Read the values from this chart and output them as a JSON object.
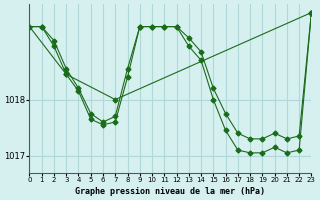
{
  "title": "Graphe pression niveau de la mer (hPa)",
  "background_color": "#d6f0f0",
  "grid_color": "#b0d8d8",
  "line_color": "#1a6b1a",
  "xlim": [
    0,
    23
  ],
  "ylim": [
    1016.7,
    1019.7
  ],
  "yticks": [
    1017,
    1018
  ],
  "xticks": [
    0,
    1,
    2,
    3,
    4,
    5,
    6,
    7,
    8,
    9,
    10,
    11,
    12,
    13,
    14,
    15,
    16,
    17,
    18,
    19,
    20,
    21,
    22,
    23
  ],
  "series1": {
    "x": [
      0,
      1,
      2,
      3,
      4,
      5,
      6,
      7,
      8,
      9,
      10,
      11,
      12,
      13,
      14,
      15,
      16,
      17,
      18,
      19,
      20,
      21,
      22,
      23
    ],
    "y": [
      1019.3,
      1019.3,
      1019.05,
      1018.55,
      1018.2,
      1017.75,
      1017.6,
      1017.7,
      1018.55,
      1019.3,
      1019.3,
      1019.3,
      1019.3,
      1019.1,
      1018.85,
      1018.2,
      1017.75,
      1017.4,
      1017.3,
      1017.3,
      1017.4,
      1017.3,
      1017.35,
      1019.55
    ]
  },
  "series2": {
    "x": [
      0,
      1,
      2,
      3,
      4,
      5,
      6,
      7,
      8,
      9,
      10,
      11,
      12,
      13,
      14,
      15,
      16,
      17,
      18,
      19,
      20,
      21,
      22,
      23
    ],
    "y": [
      1019.3,
      1019.3,
      1018.95,
      1018.45,
      1018.15,
      1017.65,
      1017.55,
      1017.6,
      1018.4,
      1019.3,
      1019.3,
      1019.3,
      1019.3,
      1018.95,
      1018.7,
      1018.0,
      1017.45,
      1017.1,
      1017.05,
      1017.05,
      1017.15,
      1017.05,
      1017.1,
      1019.55
    ]
  },
  "series3": {
    "x": [
      0,
      3,
      7,
      23
    ],
    "y": [
      1019.3,
      1018.45,
      1018.0,
      1019.55
    ]
  }
}
